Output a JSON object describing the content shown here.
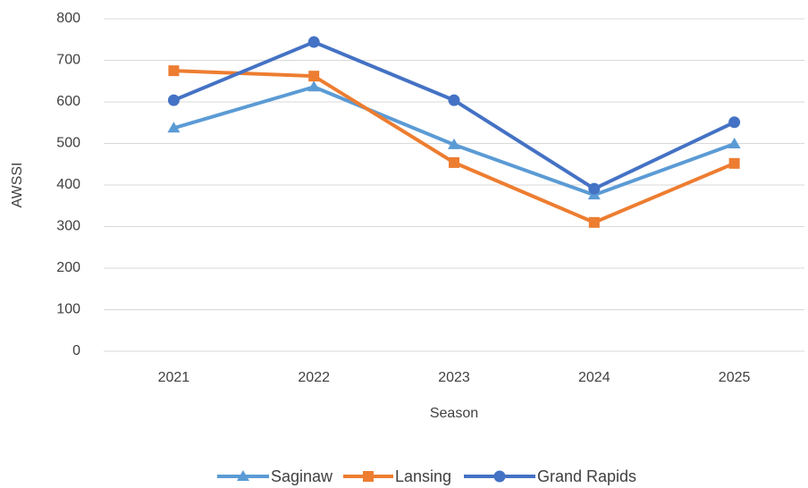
{
  "chart_data": {
    "type": "line",
    "x_label": "Season",
    "y_label": "AWSSI",
    "categories": [
      "2021",
      "2022",
      "2023",
      "2024",
      "2025"
    ],
    "series": [
      {
        "name": "Saginaw",
        "color": "#5b9bd5",
        "marker": "triangle",
        "values": [
          537,
          636,
          497,
          376,
          499
        ]
      },
      {
        "name": "Lansing",
        "color": "#ed7d31",
        "marker": "square",
        "values": [
          675,
          662,
          454,
          310,
          452
        ]
      },
      {
        "name": "Grand Rapids",
        "color": "#4472c4",
        "marker": "circle",
        "values": [
          604,
          744,
          604,
          391,
          551
        ]
      }
    ],
    "ylim": [
      0,
      800
    ],
    "yticks": [
      0,
      100,
      200,
      300,
      400,
      500,
      600,
      700,
      800
    ],
    "grid": true,
    "legend": "bottom"
  }
}
